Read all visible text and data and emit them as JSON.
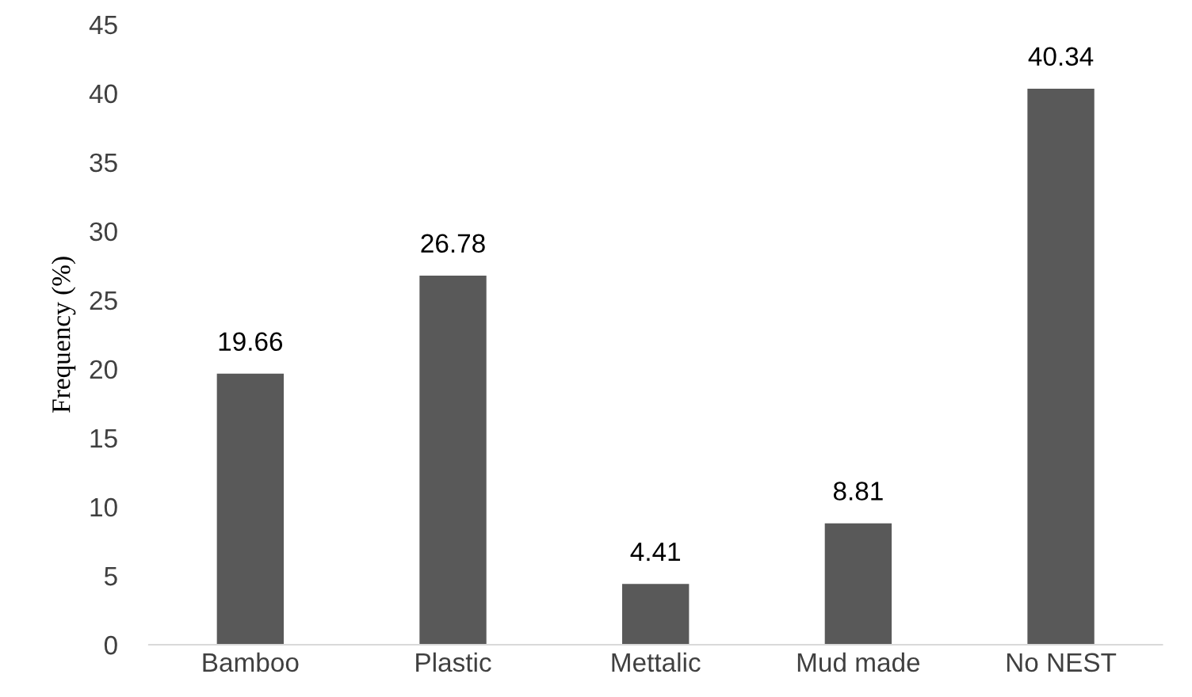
{
  "chart_data": {
    "type": "bar",
    "ylabel": "Frequency (%)",
    "categories": [
      "Bamboo",
      "Plastic",
      "Mettalic",
      "Mud made",
      "No NEST"
    ],
    "values": [
      19.66,
      26.78,
      4.41,
      8.81,
      40.34
    ],
    "color": "#595959",
    "ylim": [
      0,
      45
    ],
    "yticks": [
      0,
      5,
      10,
      15,
      20,
      25,
      30,
      35,
      40,
      45
    ],
    "data_labels": true,
    "grid": false
  }
}
